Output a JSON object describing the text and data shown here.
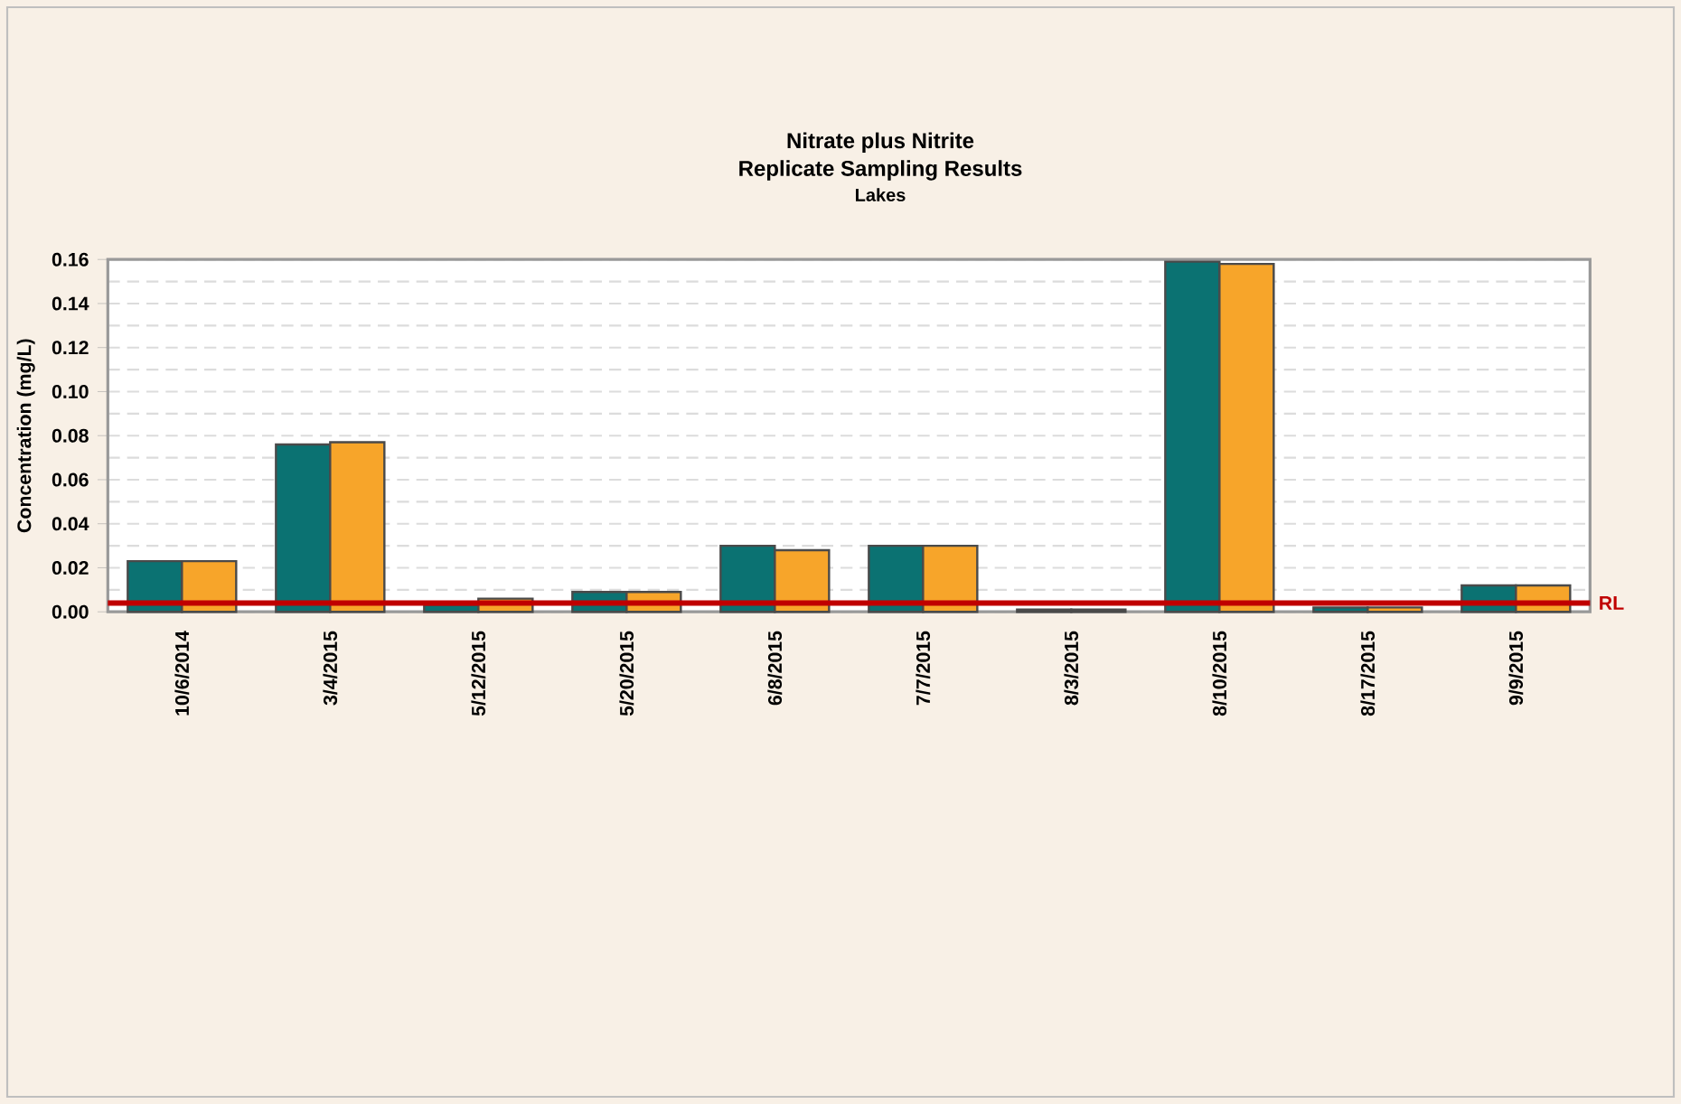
{
  "chart_data": {
    "type": "bar",
    "title": "Nitrate plus Nitrite",
    "subtitle": "Replicate Sampling Results",
    "annotations": [
      "Lakes"
    ],
    "ylabel": "Concentration (mg/L)",
    "categories": [
      "10/6/2014",
      "3/4/2015",
      "5/12/2015",
      "5/20/2015",
      "6/8/2015",
      "7/7/2015",
      "8/3/2015",
      "8/10/2015",
      "8/17/2015",
      "9/9/2015"
    ],
    "series": [
      {
        "color": "#0b7272",
        "values": [
          0.023,
          0.076,
          0.003,
          0.009,
          0.03,
          0.03,
          0.001,
          0.159,
          0.002,
          0.012
        ]
      },
      {
        "color": "#f7a52a",
        "values": [
          0.023,
          0.077,
          0.006,
          0.009,
          0.028,
          0.03,
          0.001,
          0.158,
          0.002,
          0.012
        ]
      }
    ],
    "ylim": [
      0,
      0.16
    ],
    "yticks": [
      {
        "value": 0,
        "label": "0.00"
      },
      {
        "value": 0.02,
        "label": "0.02"
      },
      {
        "value": 0.04,
        "label": "0.04"
      },
      {
        "value": 0.06,
        "label": "0.06"
      },
      {
        "value": 0.08,
        "label": "0.08"
      },
      {
        "value": 0.1,
        "label": "0.10"
      },
      {
        "value": 0.12,
        "label": "0.12"
      },
      {
        "value": 0.14,
        "label": "0.14"
      },
      {
        "value": 0.16,
        "label": "0.16"
      }
    ],
    "grid": "y",
    "ref_lines": [
      {
        "axis": "y",
        "value": 0.004,
        "label": "RL",
        "color": "#c00000"
      }
    ]
  }
}
